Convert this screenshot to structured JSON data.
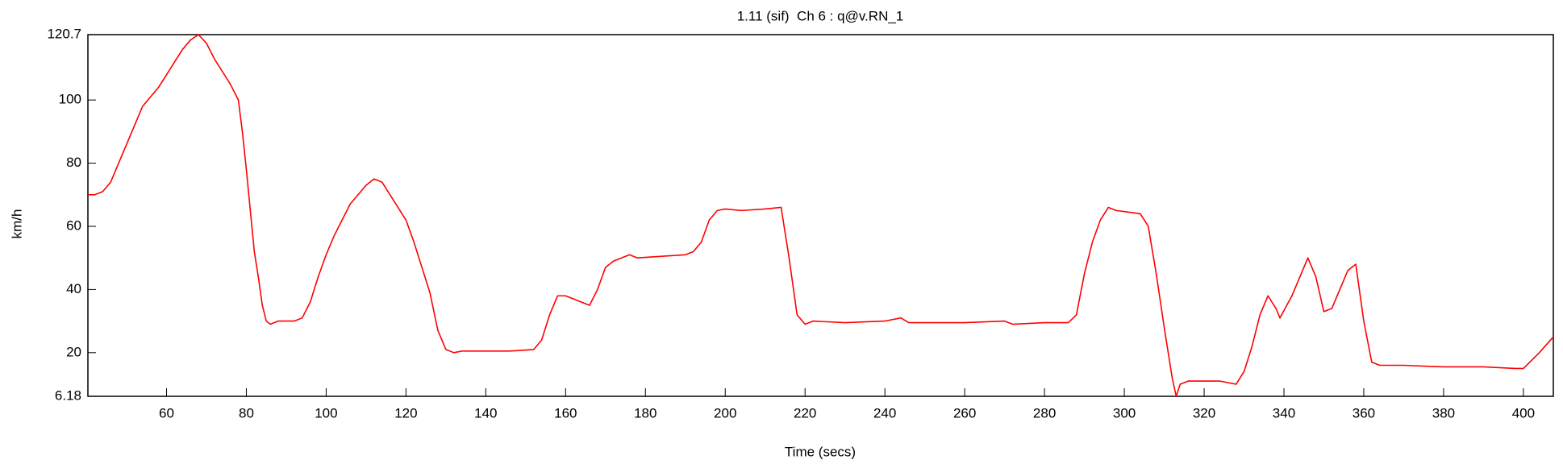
{
  "chart_data": {
    "type": "line",
    "title": "1.11 (sif)  Ch 6 : q@v.RN_1",
    "xlabel": "Time (secs)",
    "ylabel": "km/h",
    "xlim": [
      40.3,
      407.5
    ],
    "ylim": [
      6.18,
      120.7
    ],
    "xticks": [
      60,
      80,
      100,
      120,
      140,
      160,
      180,
      200,
      220,
      240,
      260,
      280,
      300,
      320,
      340,
      360,
      380,
      400
    ],
    "yticks": [
      6.18,
      20,
      40,
      60,
      80,
      100,
      120.7
    ],
    "series": [
      {
        "name": "q@v.RN_1",
        "color": "#ff0000",
        "x": [
          40.3,
          42,
          44,
          46,
          48,
          50,
          52,
          54,
          56,
          58,
          60,
          62,
          64,
          66,
          68,
          70,
          72,
          74,
          76,
          78,
          79,
          80,
          81,
          82,
          83,
          84,
          85,
          86,
          88,
          92,
          94,
          96,
          98,
          100,
          102,
          104,
          106,
          108,
          110,
          112,
          114,
          116,
          118,
          120,
          122,
          124,
          126,
          128,
          130,
          132,
          134,
          140,
          146,
          152,
          154,
          156,
          158,
          160,
          162,
          164,
          166,
          168,
          170,
          172,
          174,
          176,
          178,
          184,
          190,
          192,
          194,
          196,
          198,
          200,
          204,
          210,
          214,
          216,
          218,
          220,
          222,
          230,
          240,
          244,
          246,
          260,
          270,
          272,
          280,
          286,
          288,
          290,
          292,
          294,
          296,
          298,
          304,
          306,
          308,
          310,
          312,
          313,
          314,
          316,
          324,
          328,
          330,
          332,
          334,
          336,
          338,
          339,
          342,
          344,
          346,
          348,
          350,
          352,
          354,
          356,
          358,
          360,
          362,
          364,
          370,
          380,
          390,
          398,
          400,
          404,
          407.5
        ],
        "values": [
          70,
          70,
          71,
          74,
          80,
          86,
          92,
          98,
          101,
          104,
          108,
          112,
          116,
          119,
          120.7,
          118,
          113,
          109,
          105,
          100,
          90,
          78,
          65,
          52,
          44,
          35,
          30,
          29,
          30,
          30,
          31,
          36,
          44,
          51,
          57,
          62,
          67,
          70,
          73,
          75,
          74,
          70,
          66,
          62,
          55,
          47,
          39,
          27,
          21,
          20,
          20.5,
          20.5,
          20.5,
          21,
          24,
          32,
          38,
          38,
          37,
          36,
          35,
          40,
          47,
          49,
          50,
          51,
          50,
          50.5,
          51,
          52,
          55,
          62,
          65,
          65.5,
          65,
          65.5,
          66,
          50,
          32,
          29,
          30,
          29.5,
          30,
          31,
          29.5,
          29.5,
          30,
          29,
          29.5,
          29.5,
          32,
          45,
          55,
          62,
          66,
          65,
          64,
          60,
          45,
          28,
          12,
          6.18,
          10,
          11,
          11,
          10,
          14,
          22,
          32,
          38,
          34,
          31,
          38,
          44,
          50,
          44,
          33,
          34,
          40,
          46,
          48,
          30,
          17,
          16,
          16,
          15.5,
          15.5,
          15,
          15,
          20,
          25
        ]
      }
    ]
  }
}
